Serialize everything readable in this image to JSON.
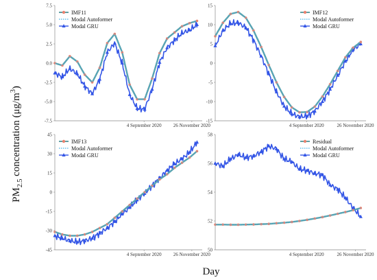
{
  "figure": {
    "ylabel_main": "PM",
    "ylabel_sub": "2.5",
    "ylabel_rest": " concentration  (μg/m",
    "ylabel_sup": "3",
    "ylabel_close": ")",
    "xlabel": "Day"
  },
  "colors": {
    "actual": "#5f9fa3",
    "actual_marker": "#e8826f",
    "autoformer": "#3fb1e6",
    "gru": "#3355e6"
  },
  "chart_data": [
    {
      "type": "line",
      "legend": [
        "IMF11",
        "Modal Autoformer",
        "Modal GRU"
      ],
      "legend_position": "top-left",
      "x_tick_labels": [
        "4 September 2020",
        "26 November 2020"
      ],
      "x_tick_days": [
        155,
        238
      ],
      "y_tick_labels": [
        "7.5",
        "5.0",
        "2.5",
        "0.0",
        "-2.5",
        "-5.0",
        "-7.5"
      ],
      "ylim": [
        -7.5,
        7.5
      ],
      "xlim": [
        0,
        256
      ],
      "grid": false,
      "series": [
        {
          "days": [
            0,
            13,
            26,
            39,
            52,
            65,
            78,
            91,
            104,
            117,
            130,
            143,
            156,
            169,
            182,
            195,
            208,
            221,
            234,
            247
          ],
          "values": [
            0.0,
            -0.3,
            0.9,
            0.2,
            -1.5,
            -2.5,
            -0.6,
            2.6,
            3.8,
            1.4,
            -2.8,
            -4.7,
            -4.7,
            -2.0,
            1.3,
            3.2,
            4.0,
            4.8,
            5.2,
            5.5
          ]
        },
        {
          "days": [
            0,
            13,
            26,
            39,
            52,
            65,
            78,
            91,
            104,
            117,
            130,
            143,
            156,
            169,
            182,
            195,
            208,
            221,
            234,
            247
          ],
          "values": [
            0.0,
            -0.3,
            0.9,
            0.2,
            -1.5,
            -2.5,
            -0.6,
            2.6,
            3.8,
            1.4,
            -2.8,
            -4.7,
            -4.7,
            -2.0,
            1.3,
            3.2,
            4.0,
            4.8,
            5.2,
            5.5
          ]
        },
        {
          "days": [
            0,
            13,
            26,
            39,
            52,
            65,
            78,
            91,
            104,
            117,
            130,
            143,
            156,
            169,
            182,
            195,
            208,
            221,
            234,
            247
          ],
          "values": [
            -1.3,
            -1.8,
            -0.7,
            -1.4,
            -3.0,
            -4.0,
            -2.1,
            1.4,
            2.6,
            0.0,
            -4.1,
            -5.9,
            -6.0,
            -3.4,
            0.1,
            2.0,
            3.0,
            3.9,
            4.3,
            5.0
          ]
        }
      ]
    },
    {
      "type": "line",
      "legend": [
        "IMF12",
        "Modal Autoformer",
        "Modal GRU"
      ],
      "legend_position": "top-right",
      "x_tick_labels": [
        "4 September 2020",
        "26 November 2020"
      ],
      "x_tick_days": [
        155,
        238
      ],
      "y_tick_labels": [
        "15",
        "10",
        "5",
        "0",
        "-5",
        "-10",
        "-15"
      ],
      "ylim": [
        -15,
        15
      ],
      "xlim": [
        0,
        256
      ],
      "grid": false,
      "series": [
        {
          "days": [
            0,
            13,
            26,
            39,
            52,
            65,
            78,
            91,
            104,
            117,
            130,
            143,
            156,
            169,
            182,
            195,
            208,
            221,
            234,
            247
          ],
          "values": [
            7.0,
            10.5,
            12.8,
            13.3,
            11.8,
            8.5,
            4.2,
            -0.5,
            -5.0,
            -8.8,
            -11.5,
            -12.8,
            -12.7,
            -11.3,
            -8.7,
            -5.5,
            -2.0,
            1.5,
            4.0,
            5.5
          ]
        },
        {
          "days": [
            0,
            13,
            26,
            39,
            52,
            65,
            78,
            91,
            104,
            117,
            130,
            143,
            156,
            169,
            182,
            195,
            208,
            221,
            234,
            247
          ],
          "values": [
            7.0,
            10.5,
            12.8,
            13.3,
            11.8,
            8.5,
            4.2,
            -0.5,
            -5.0,
            -8.8,
            -11.5,
            -12.8,
            -12.7,
            -11.3,
            -8.7,
            -5.5,
            -2.0,
            1.5,
            4.0,
            5.5
          ]
        },
        {
          "days": [
            0,
            13,
            26,
            39,
            52,
            65,
            78,
            91,
            104,
            117,
            130,
            143,
            156,
            169,
            182,
            195,
            208,
            221,
            234,
            247
          ],
          "values": [
            4.5,
            8.5,
            10.3,
            10.5,
            9.2,
            6.0,
            1.8,
            -2.8,
            -7.5,
            -11.2,
            -13.2,
            -14.0,
            -13.8,
            -12.5,
            -10.0,
            -6.8,
            -3.2,
            0.5,
            3.5,
            5.0
          ]
        }
      ]
    },
    {
      "type": "line",
      "legend": [
        "IMF13",
        "Modal Autoformer",
        "Modal GRU"
      ],
      "legend_position": "top-left",
      "x_tick_labels": [
        "4 September 2020",
        "26 November 2020"
      ],
      "x_tick_days": [
        155,
        238
      ],
      "y_tick_labels": [
        "45",
        "30",
        "15",
        "0",
        "-15",
        "-30",
        "-45"
      ],
      "ylim": [
        -45,
        45
      ],
      "xlim": [
        0,
        256
      ],
      "grid": false,
      "series": [
        {
          "days": [
            0,
            13,
            26,
            39,
            52,
            65,
            78,
            91,
            104,
            117,
            130,
            143,
            156,
            169,
            182,
            195,
            208,
            221,
            234,
            247
          ],
          "values": [
            -31,
            -33,
            -34,
            -34,
            -33,
            -31,
            -28,
            -25,
            -20,
            -15,
            -10,
            -5,
            0,
            5,
            10,
            14,
            19,
            23,
            27,
            32
          ]
        },
        {
          "days": [
            0,
            13,
            26,
            39,
            52,
            65,
            78,
            91,
            104,
            117,
            130,
            143,
            156,
            169,
            182,
            195,
            208,
            221,
            234,
            247
          ],
          "values": [
            -31,
            -33,
            -34,
            -34,
            -33,
            -31,
            -28,
            -25,
            -20,
            -15,
            -10,
            -5,
            0,
            5,
            10,
            14,
            19,
            23,
            27,
            32
          ]
        },
        {
          "days": [
            0,
            13,
            26,
            39,
            52,
            65,
            78,
            91,
            104,
            117,
            130,
            143,
            156,
            169,
            182,
            195,
            208,
            221,
            234,
            247
          ],
          "values": [
            -34,
            -36,
            -38,
            -39,
            -38,
            -36,
            -32,
            -28,
            -23,
            -17,
            -12,
            -6,
            -1,
            5,
            11,
            17,
            22,
            26,
            31,
            39
          ]
        }
      ]
    },
    {
      "type": "line",
      "legend": [
        "Residual",
        "Modal Autoformer",
        "Modal GRU"
      ],
      "legend_position": "top-right",
      "x_tick_labels": [
        "4 September 2020",
        "26 November 2020"
      ],
      "x_tick_days": [
        155,
        238
      ],
      "y_tick_labels": [
        "58",
        "56",
        "54",
        "52",
        "50"
      ],
      "ylim": [
        50,
        58
      ],
      "xlim": [
        0,
        256
      ],
      "grid": false,
      "series": [
        {
          "days": [
            0,
            13,
            26,
            39,
            52,
            65,
            78,
            91,
            104,
            117,
            130,
            143,
            156,
            169,
            182,
            195,
            208,
            221,
            234,
            247
          ],
          "values": [
            51.75,
            51.75,
            51.74,
            51.74,
            51.75,
            51.76,
            51.78,
            51.8,
            51.84,
            51.88,
            51.93,
            52.0,
            52.08,
            52.17,
            52.27,
            52.38,
            52.5,
            52.62,
            52.75,
            52.9
          ]
        },
        {
          "days": [
            0,
            13,
            26,
            39,
            52,
            65,
            78,
            91,
            104,
            117,
            130,
            143,
            156,
            169,
            182,
            195,
            208,
            221,
            234,
            247
          ],
          "values": [
            51.75,
            51.75,
            51.74,
            51.74,
            51.75,
            51.76,
            51.78,
            51.8,
            51.84,
            51.88,
            51.93,
            52.0,
            52.08,
            52.17,
            52.27,
            52.38,
            52.5,
            52.62,
            52.75,
            52.9
          ]
        },
        {
          "days": [
            0,
            13,
            26,
            39,
            52,
            65,
            78,
            91,
            104,
            117,
            130,
            143,
            156,
            169,
            182,
            195,
            208,
            221,
            234,
            247
          ],
          "values": [
            56.0,
            55.8,
            56.3,
            56.6,
            56.4,
            56.5,
            56.8,
            57.2,
            57.0,
            56.3,
            56.1,
            55.6,
            55.5,
            55.3,
            55.2,
            54.5,
            54.2,
            53.6,
            52.9,
            52.3
          ]
        }
      ]
    }
  ]
}
